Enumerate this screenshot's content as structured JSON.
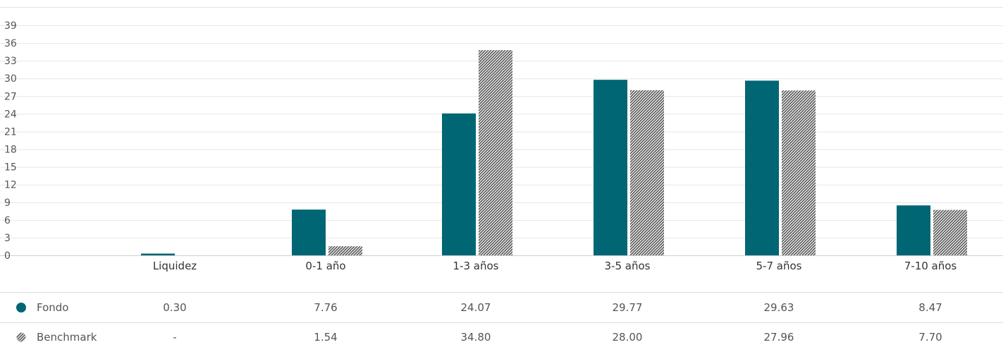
{
  "chart_data": {
    "type": "bar",
    "categories": [
      "Liquidez",
      "0-1 año",
      "1-3 años",
      "3-5 años",
      "5-7 años",
      "7-10 años"
    ],
    "series": [
      {
        "name": "Fondo",
        "values": [
          0.3,
          7.76,
          24.07,
          29.77,
          29.63,
          8.47
        ],
        "display": [
          "0.30",
          "7.76",
          "24.07",
          "29.77",
          "29.63",
          "8.47"
        ],
        "color": "#006674"
      },
      {
        "name": "Benchmark",
        "values": [
          null,
          1.54,
          34.8,
          28.0,
          27.96,
          7.7
        ],
        "display": [
          "-",
          "1.54",
          "34.80",
          "28.00",
          "27.96",
          "7.70"
        ],
        "color": "#555555",
        "pattern": "diagonal-hatch"
      }
    ],
    "y_ticks": [
      "0",
      "3",
      "6",
      "9",
      "12",
      "15",
      "18",
      "21",
      "24",
      "27",
      "30",
      "33",
      "36",
      "39"
    ],
    "ylim": [
      0,
      39
    ],
    "grid": true
  }
}
